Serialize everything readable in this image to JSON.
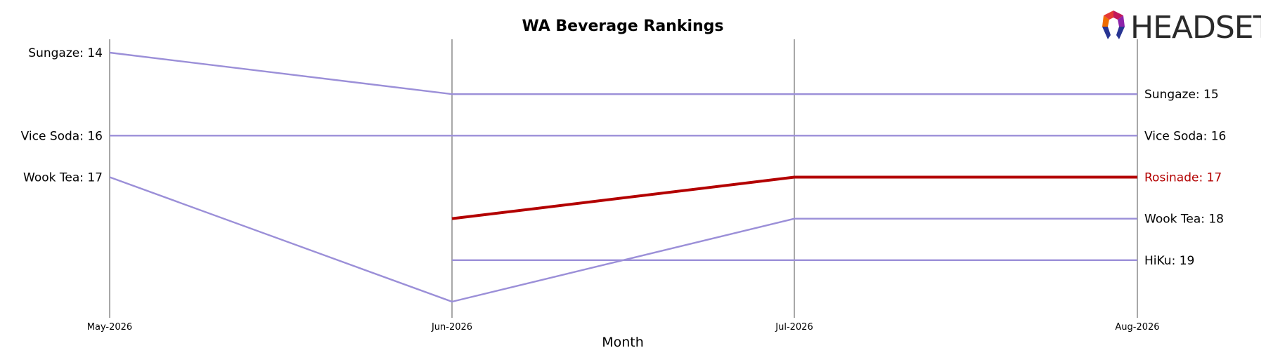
{
  "chart_data": {
    "type": "line",
    "title": "WA Beverage Rankings",
    "xlabel": "Month",
    "ylabel": "",
    "x": [
      "May-2026",
      "Jun-2026",
      "Jul-2026",
      "Aug-2026"
    ],
    "ylim": [
      20,
      14
    ],
    "y_inverted": true,
    "grid": false,
    "series": [
      {
        "name": "Sungaze",
        "values": [
          14,
          15,
          15,
          15
        ],
        "color": "#9b8fd8",
        "highlight": false
      },
      {
        "name": "Vice Soda",
        "values": [
          16,
          16,
          16,
          16
        ],
        "color": "#9b8fd8",
        "highlight": false
      },
      {
        "name": "Wook Tea",
        "values": [
          17,
          20,
          18,
          18
        ],
        "color": "#9b8fd8",
        "highlight": false
      },
      {
        "name": "Rosinade",
        "values": [
          null,
          18,
          17,
          17
        ],
        "color": "#b30000",
        "highlight": true
      },
      {
        "name": "HiKu",
        "values": [
          null,
          19,
          19,
          19
        ],
        "color": "#9b8fd8",
        "highlight": false
      }
    ],
    "left_labels": [
      {
        "text": "Sungaze: 14",
        "value": 14,
        "color": "#000000"
      },
      {
        "text": "Vice Soda: 16",
        "value": 16,
        "color": "#000000"
      },
      {
        "text": "Wook Tea: 17",
        "value": 17,
        "color": "#000000"
      }
    ],
    "right_labels": [
      {
        "text": "Sungaze: 15",
        "value": 15,
        "color": "#000000"
      },
      {
        "text": "Vice Soda: 16",
        "value": 16,
        "color": "#000000"
      },
      {
        "text": "Rosinade: 17",
        "value": 17,
        "color": "#b30000"
      },
      {
        "text": "Wook Tea: 18",
        "value": 18,
        "color": "#000000"
      },
      {
        "text": "HiKu: 19",
        "value": 19,
        "color": "#000000"
      }
    ]
  },
  "logo": {
    "text": "HEADSET"
  },
  "colors": {
    "axis_line": "#a8a8a8",
    "series_default": "#9b8fd8",
    "highlight": "#b30000"
  }
}
